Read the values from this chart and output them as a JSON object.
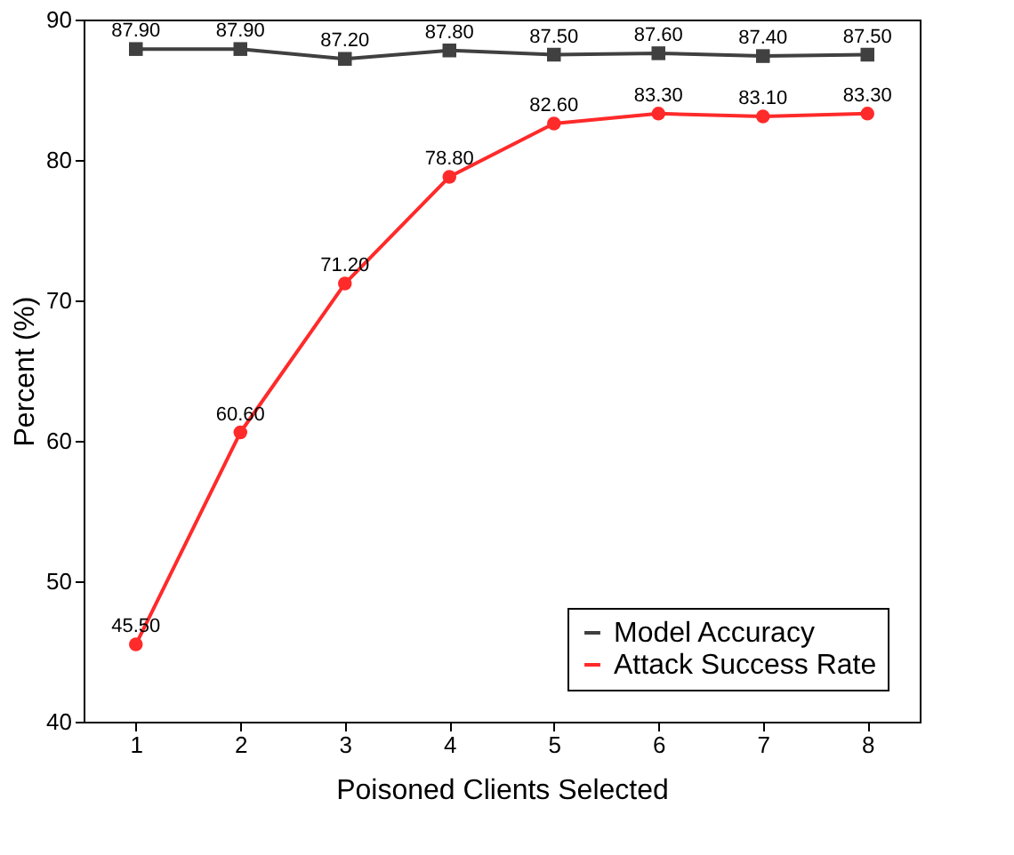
{
  "chart_data": {
    "type": "line",
    "xlabel": "Poisoned Clients Selected",
    "ylabel": "Percent (%)",
    "x": [
      1,
      2,
      3,
      4,
      5,
      6,
      7,
      8
    ],
    "series": [
      {
        "name": "Model Accuracy",
        "color": "#404040",
        "marker": "square",
        "values": [
          87.9,
          87.9,
          87.2,
          87.8,
          87.5,
          87.6,
          87.4,
          87.5
        ],
        "value_labels": [
          "87.90",
          "87.90",
          "87.20",
          "87.80",
          "87.50",
          "87.60",
          "87.40",
          "87.50"
        ]
      },
      {
        "name": "Attack Success Rate",
        "color": "#ff2a2a",
        "marker": "circle",
        "values": [
          45.5,
          60.6,
          71.2,
          78.8,
          82.6,
          83.3,
          83.1,
          83.3
        ],
        "value_labels": [
          "45.50",
          "60.60",
          "71.20",
          "78.80",
          "82.60",
          "83.30",
          "83.10",
          "83.30"
        ]
      }
    ],
    "xlim": [
      0.5,
      8.5
    ],
    "xticks": [
      1,
      2,
      3,
      4,
      5,
      6,
      7,
      8
    ],
    "ylim": [
      40,
      90
    ],
    "yticks": [
      40,
      50,
      60,
      70,
      80,
      90
    ],
    "grid": false,
    "legend": "bottom right",
    "line_style": "solid"
  }
}
